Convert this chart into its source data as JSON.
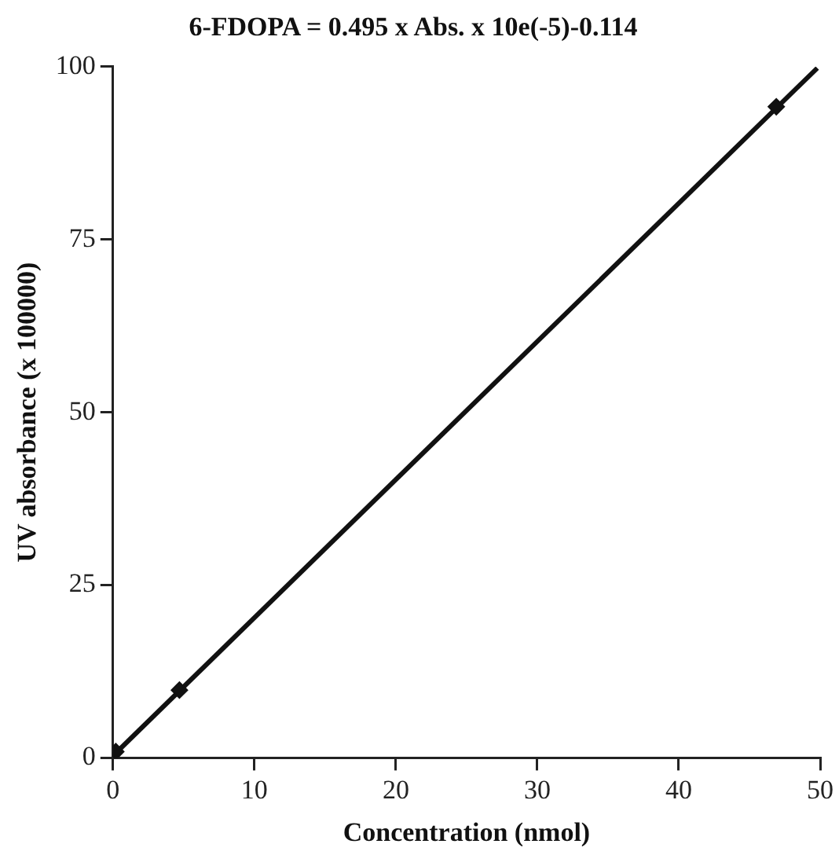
{
  "chart_data": {
    "type": "scatter",
    "title": "6-FDOPA = 0.495 x Abs. x 10e(-5)-0.114",
    "xlabel": "Concentration (nmol)",
    "ylabel": "UV absorbance (x 100000)",
    "xlim": [
      0,
      50
    ],
    "xticks": [
      0,
      10,
      20,
      30,
      40,
      50
    ],
    "ylim": [
      0,
      100
    ],
    "yticks": [
      0,
      25,
      50,
      75,
      100
    ],
    "grid": false,
    "legend": false,
    "marker": "diamond",
    "series": [
      {
        "type": "scatter",
        "color": "#111111",
        "x": [
          0.2,
          4.7,
          46.9
        ],
        "values": [
          0.9,
          9.8,
          94.2
        ]
      },
      {
        "type": "line",
        "color": "#111111",
        "x": [
          0,
          49.8
        ],
        "values": [
          0.3,
          99.8
        ],
        "marker": "none",
        "line_style": "solid"
      }
    ]
  }
}
